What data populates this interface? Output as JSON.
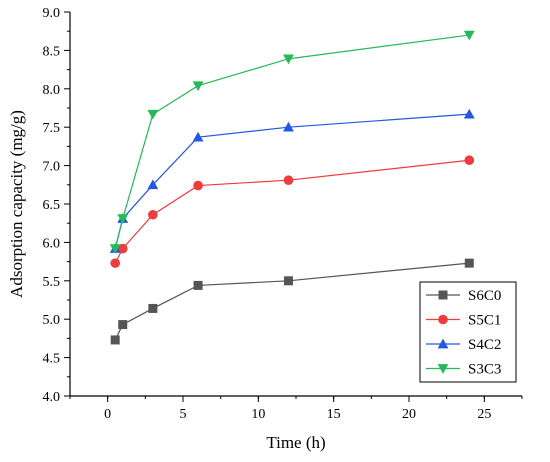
{
  "chart_data": {
    "type": "line",
    "xlabel": "Time (h)",
    "ylabel": "Adsorption capacity (mg/g)",
    "xlim": [
      -2.5,
      27.5
    ],
    "ylim": [
      4.0,
      9.0
    ],
    "x_ticks": [
      0,
      5,
      10,
      15,
      20,
      25
    ],
    "y_ticks": [
      4.0,
      4.5,
      5.0,
      5.5,
      6.0,
      6.5,
      7.0,
      7.5,
      8.0,
      8.5,
      9.0
    ],
    "x_tick_labels": [
      "0",
      "5",
      "10",
      "15",
      "20",
      "25"
    ],
    "y_tick_labels": [
      "4.0",
      "4.5",
      "5.0",
      "5.5",
      "6.0",
      "6.5",
      "7.0",
      "7.5",
      "8.0",
      "8.5",
      "9.0"
    ],
    "legend_placement": "bottom-right",
    "grid": false,
    "x": [
      0.5,
      1,
      3,
      6,
      12,
      24
    ],
    "series": [
      {
        "name": "S6C0",
        "marker": "square",
        "color": "#555555",
        "values": [
          4.73,
          4.93,
          5.14,
          5.44,
          5.5,
          5.73
        ]
      },
      {
        "name": "S5C1",
        "marker": "circle",
        "color": "#ee3b3b",
        "values": [
          5.73,
          5.92,
          6.36,
          6.74,
          6.81,
          7.07
        ]
      },
      {
        "name": "S4C2",
        "marker": "triangle-up",
        "color": "#2457e6",
        "values": [
          5.92,
          6.31,
          6.75,
          7.37,
          7.5,
          7.67
        ]
      },
      {
        "name": "S3C3",
        "marker": "triangle-down",
        "color": "#22bb55",
        "values": [
          5.92,
          6.31,
          7.67,
          8.04,
          8.39,
          8.7
        ]
      }
    ]
  }
}
